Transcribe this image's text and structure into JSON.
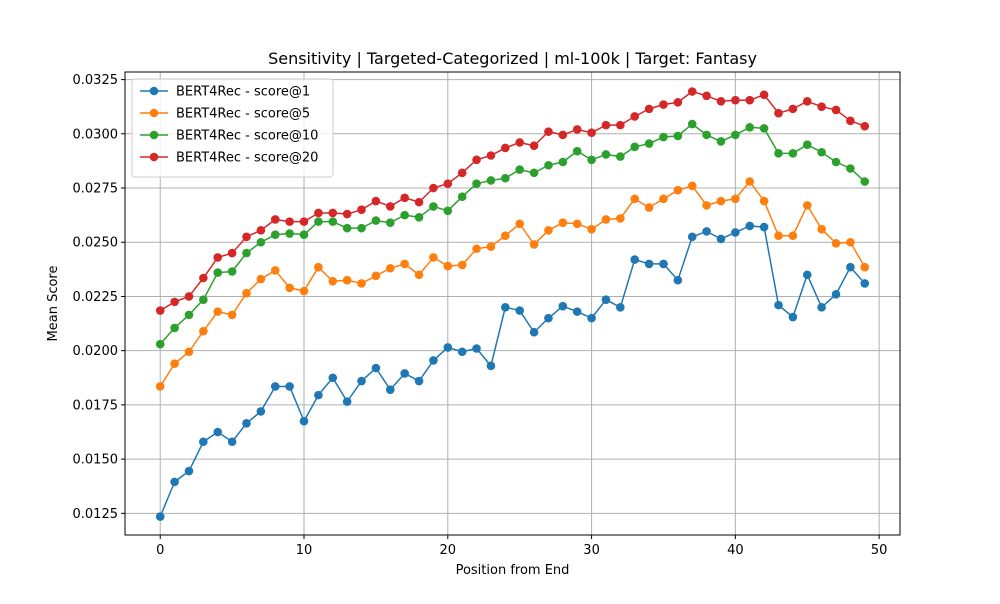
{
  "chart_data": {
    "type": "line",
    "title": "Sensitivity | Targeted-Categorized | ml-100k | Target: Fantasy",
    "xlabel": "Position from End",
    "ylabel": "Mean Score",
    "xlim": [
      -2.45,
      51.45
    ],
    "ylim": [
      0.0115,
      0.03285
    ],
    "xticks": [
      0,
      10,
      20,
      30,
      40,
      50
    ],
    "yticks": [
      0.0125,
      0.015,
      0.0175,
      0.02,
      0.0225,
      0.025,
      0.0275,
      0.03,
      0.0325
    ],
    "ytick_labels": [
      "0.0125",
      "0.0150",
      "0.0175",
      "0.0200",
      "0.0225",
      "0.0250",
      "0.0275",
      "0.0300",
      "0.0325"
    ],
    "grid": true,
    "legend_position": "top-left",
    "x": [
      0,
      1,
      2,
      3,
      4,
      5,
      6,
      7,
      8,
      9,
      10,
      11,
      12,
      13,
      14,
      15,
      16,
      17,
      18,
      19,
      20,
      21,
      22,
      23,
      24,
      25,
      26,
      27,
      28,
      29,
      30,
      31,
      32,
      33,
      34,
      35,
      36,
      37,
      38,
      39,
      40,
      41,
      42,
      43,
      44,
      45,
      46,
      47,
      48,
      49
    ],
    "series": [
      {
        "name": "BERT4Rec - score@1",
        "color": "#1f77b4",
        "values": [
          0.01235,
          0.01395,
          0.01445,
          0.0158,
          0.01625,
          0.0158,
          0.01665,
          0.0172,
          0.01835,
          0.01835,
          0.01675,
          0.01795,
          0.01875,
          0.01765,
          0.0186,
          0.0192,
          0.0182,
          0.01895,
          0.0186,
          0.01955,
          0.02015,
          0.01995,
          0.0201,
          0.0193,
          0.022,
          0.02185,
          0.02085,
          0.0215,
          0.02205,
          0.0218,
          0.0215,
          0.02235,
          0.022,
          0.0242,
          0.024,
          0.024,
          0.02325,
          0.02525,
          0.0255,
          0.02515,
          0.02545,
          0.02575,
          0.0257,
          0.0221,
          0.02155,
          0.0235,
          0.022,
          0.0226,
          0.02385,
          0.0231
        ]
      },
      {
        "name": "BERT4Rec - score@5",
        "color": "#ff7f0e",
        "values": [
          0.01835,
          0.0194,
          0.01995,
          0.0209,
          0.0218,
          0.02165,
          0.02265,
          0.0233,
          0.0237,
          0.0229,
          0.02275,
          0.02385,
          0.0232,
          0.02325,
          0.0231,
          0.02345,
          0.0238,
          0.024,
          0.0235,
          0.0243,
          0.0239,
          0.02395,
          0.0247,
          0.0248,
          0.0253,
          0.02585,
          0.0249,
          0.02555,
          0.0259,
          0.02585,
          0.0256,
          0.02605,
          0.0261,
          0.027,
          0.0266,
          0.027,
          0.0274,
          0.0276,
          0.0267,
          0.0269,
          0.027,
          0.0278,
          0.0269,
          0.0253,
          0.0253,
          0.0267,
          0.0256,
          0.02495,
          0.025,
          0.02385
        ]
      },
      {
        "name": "BERT4Rec - score@10",
        "color": "#2ca02c",
        "values": [
          0.0203,
          0.02105,
          0.02165,
          0.02235,
          0.0236,
          0.02365,
          0.0245,
          0.025,
          0.02535,
          0.0254,
          0.02535,
          0.02595,
          0.02595,
          0.02565,
          0.02565,
          0.026,
          0.0259,
          0.02625,
          0.02615,
          0.02665,
          0.02645,
          0.0271,
          0.0277,
          0.02785,
          0.02795,
          0.02835,
          0.0282,
          0.02855,
          0.0287,
          0.0292,
          0.0288,
          0.02905,
          0.02895,
          0.0294,
          0.02955,
          0.02985,
          0.0299,
          0.03045,
          0.02995,
          0.02965,
          0.02995,
          0.0303,
          0.03025,
          0.0291,
          0.0291,
          0.0295,
          0.02915,
          0.0287,
          0.0284,
          0.0278
        ]
      },
      {
        "name": "BERT4Rec - score@20",
        "color": "#d62728",
        "values": [
          0.02185,
          0.02225,
          0.0225,
          0.02335,
          0.0243,
          0.0245,
          0.02525,
          0.02555,
          0.02605,
          0.02595,
          0.02595,
          0.02635,
          0.02635,
          0.0263,
          0.0265,
          0.0269,
          0.02665,
          0.02705,
          0.02685,
          0.0275,
          0.0277,
          0.0282,
          0.0288,
          0.029,
          0.02935,
          0.0296,
          0.02945,
          0.0301,
          0.02995,
          0.0302,
          0.03005,
          0.0304,
          0.0304,
          0.0308,
          0.03115,
          0.03135,
          0.03145,
          0.03195,
          0.03175,
          0.0315,
          0.03155,
          0.03155,
          0.0318,
          0.03095,
          0.03115,
          0.0315,
          0.03125,
          0.0311,
          0.0306,
          0.03035
        ]
      }
    ]
  }
}
